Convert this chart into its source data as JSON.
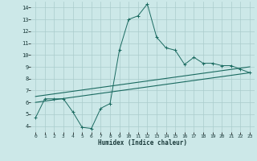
{
  "xlabel": "Humidex (Indice chaleur)",
  "ylabel": "",
  "xlim": [
    -0.5,
    23.5
  ],
  "ylim": [
    3.5,
    14.5
  ],
  "xticks": [
    0,
    1,
    2,
    3,
    4,
    5,
    6,
    7,
    8,
    9,
    10,
    11,
    12,
    13,
    14,
    15,
    16,
    17,
    18,
    19,
    20,
    21,
    22,
    23
  ],
  "yticks": [
    4,
    5,
    6,
    7,
    8,
    9,
    10,
    11,
    12,
    13,
    14
  ],
  "bg_color": "#cce8e8",
  "grid_color": "#aacccc",
  "line_color": "#1a6a60",
  "line1_x": [
    0,
    1,
    2,
    3,
    4,
    5,
    6,
    7,
    8,
    9,
    10,
    11,
    12,
    13,
    14,
    15,
    16,
    17,
    18,
    19,
    20,
    21,
    22,
    23
  ],
  "line1_y": [
    4.7,
    6.3,
    6.3,
    6.3,
    5.2,
    3.9,
    3.8,
    5.5,
    5.9,
    10.4,
    13.0,
    13.3,
    14.3,
    11.5,
    10.6,
    10.4,
    9.2,
    9.8,
    9.3,
    9.3,
    9.1,
    9.1,
    8.8,
    8.5
  ],
  "line2_x": [
    0,
    23
  ],
  "line2_y": [
    6.5,
    9.0
  ],
  "line3_x": [
    0,
    23
  ],
  "line3_y": [
    6.0,
    8.5
  ],
  "marker": "+"
}
